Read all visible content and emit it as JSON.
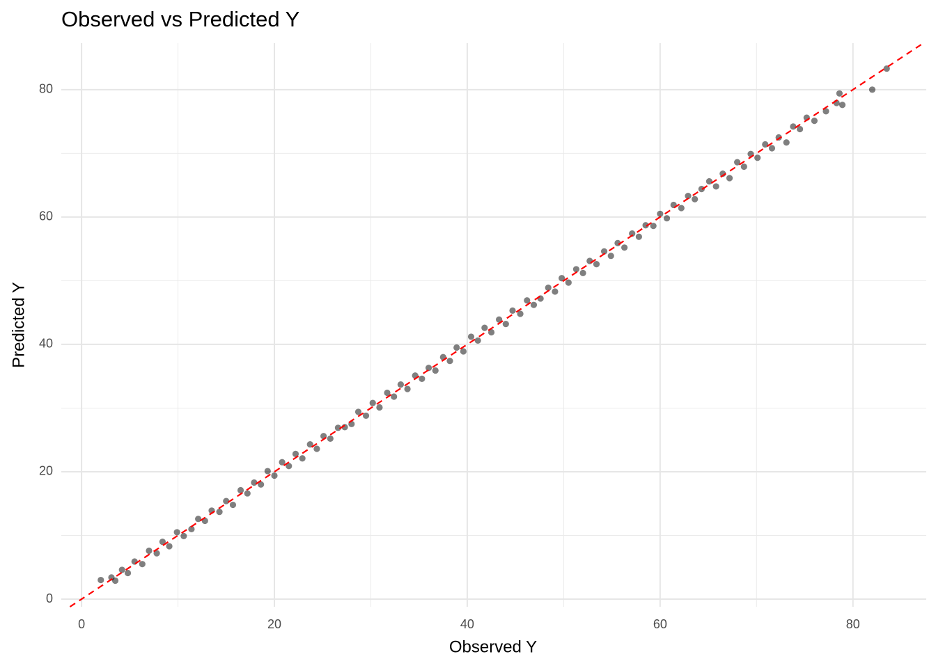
{
  "chart_data": {
    "type": "scatter",
    "title": "Observed vs Predicted Y",
    "x_label": "Observed Y",
    "y_label": "Predicted Y",
    "x": [
      2.0,
      3.1,
      3.5,
      4.2,
      4.8,
      5.5,
      6.3,
      7.0,
      7.8,
      8.4,
      9.1,
      9.9,
      10.6,
      11.4,
      12.1,
      12.8,
      13.5,
      14.3,
      15.0,
      15.7,
      16.5,
      17.2,
      17.9,
      18.6,
      19.3,
      20.0,
      20.8,
      21.5,
      22.2,
      22.9,
      23.7,
      24.4,
      25.1,
      25.8,
      26.6,
      27.3,
      28.0,
      28.7,
      29.5,
      30.2,
      30.9,
      31.7,
      32.4,
      33.1,
      33.8,
      34.6,
      35.3,
      36.0,
      36.7,
      37.5,
      38.2,
      38.9,
      39.6,
      40.4,
      41.1,
      41.8,
      42.5,
      43.3,
      44.0,
      44.7,
      45.5,
      46.2,
      46.9,
      47.6,
      48.4,
      49.1,
      49.8,
      50.5,
      51.3,
      52.0,
      52.7,
      53.4,
      54.2,
      54.9,
      55.6,
      56.3,
      57.1,
      57.8,
      58.5,
      59.3,
      60.0,
      60.7,
      61.4,
      62.2,
      62.9,
      63.6,
      64.3,
      65.1,
      65.8,
      66.5,
      67.2,
      68.0,
      68.7,
      69.4,
      70.1,
      70.9,
      71.6,
      72.3,
      73.1,
      73.8,
      74.5,
      75.2,
      76.0,
      77.2,
      78.3,
      78.6,
      78.9,
      82.0,
      83.5
    ],
    "values": [
      3.0,
      3.4,
      2.9,
      4.6,
      4.1,
      5.9,
      5.5,
      7.6,
      7.2,
      9.0,
      8.3,
      10.5,
      9.9,
      11.0,
      12.6,
      12.3,
      13.9,
      13.7,
      15.4,
      14.8,
      17.1,
      16.6,
      18.3,
      18.0,
      20.1,
      19.4,
      21.5,
      20.9,
      22.8,
      22.1,
      24.3,
      23.6,
      25.6,
      25.2,
      26.9,
      27.0,
      27.5,
      29.4,
      28.8,
      30.8,
      30.1,
      32.4,
      31.8,
      33.7,
      33.0,
      35.1,
      34.6,
      36.3,
      35.9,
      38.0,
      37.4,
      39.5,
      38.9,
      41.2,
      40.6,
      42.6,
      41.9,
      43.9,
      43.2,
      45.3,
      44.8,
      46.9,
      46.2,
      47.2,
      48.9,
      48.3,
      50.4,
      49.7,
      51.8,
      51.2,
      53.1,
      52.6,
      54.6,
      53.9,
      55.9,
      55.2,
      57.4,
      56.9,
      58.7,
      58.6,
      60.5,
      59.8,
      61.9,
      61.4,
      63.3,
      62.8,
      64.4,
      65.6,
      64.8,
      66.8,
      66.1,
      68.6,
      67.9,
      69.9,
      69.3,
      71.4,
      70.8,
      72.5,
      71.7,
      74.2,
      73.8,
      75.6,
      75.1,
      76.6,
      77.9,
      79.4,
      77.6,
      80.0,
      83.3
    ],
    "color": "#000000",
    "point_opacity": 0.5,
    "xlim": [
      -2.1,
      87.6
    ],
    "ylim": [
      -1.2,
      87.3
    ],
    "xticks": [
      0,
      20,
      40,
      60,
      80
    ],
    "yticks": [
      0,
      20,
      40,
      60,
      80
    ],
    "minor_xticks": [
      10,
      30,
      50,
      70
    ],
    "minor_yticks": [
      10,
      30,
      50,
      70
    ],
    "grid": true,
    "identity_line": true,
    "identity_line_color": "#ff0000"
  }
}
